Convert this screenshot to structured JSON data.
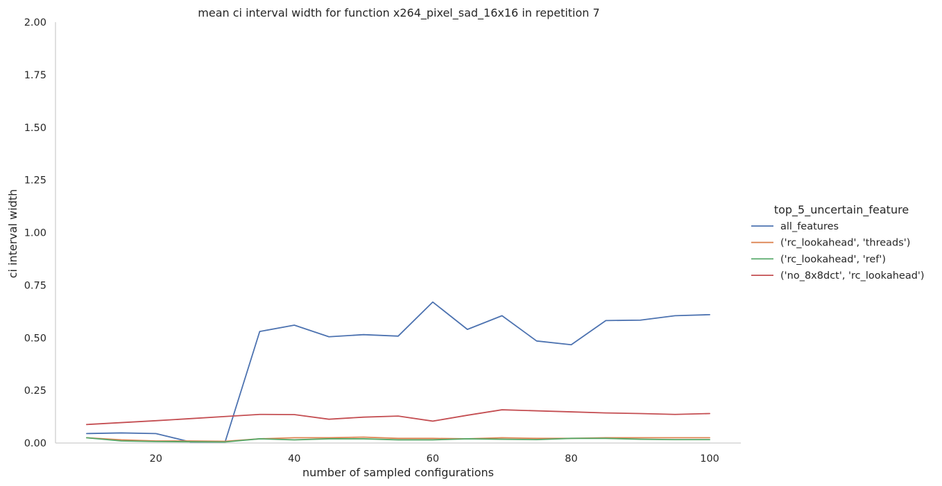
{
  "chart_data": {
    "type": "line",
    "title": "mean ci interval width for function x264_pixel_sad_16x16 in repetition 7",
    "xlabel": "number of sampled configurations",
    "ylabel": "ci interval width",
    "xlim": [
      5.5,
      104.5
    ],
    "ylim": [
      0,
      2.0
    ],
    "xticks": [
      20,
      40,
      60,
      80,
      100
    ],
    "xtick_labels": [
      "20",
      "40",
      "60",
      "80",
      "100"
    ],
    "yticks": [
      0,
      0.25,
      0.5,
      0.75,
      1.0,
      1.25,
      1.5,
      1.75,
      2.0
    ],
    "ytick_labels": [
      "0.00",
      "0.25",
      "0.50",
      "0.75",
      "1.00",
      "1.25",
      "1.50",
      "1.75",
      "2.00"
    ],
    "grid": false,
    "legend": {
      "title": "top_5_uncertain_feature",
      "placement": "right"
    },
    "x": [
      10,
      15,
      20,
      25,
      30,
      35,
      40,
      45,
      50,
      55,
      60,
      65,
      70,
      75,
      80,
      85,
      90,
      95,
      100
    ],
    "series": [
      {
        "name": "all_features",
        "color": "#4c72b0",
        "values": [
          0.045,
          0.048,
          0.045,
          0.005,
          0.005,
          0.53,
          0.56,
          0.505,
          0.515,
          0.508,
          0.67,
          0.54,
          0.605,
          0.485,
          0.467,
          0.582,
          0.584,
          0.605,
          0.61
        ]
      },
      {
        "name": "('rc_lookahead', 'threads')",
        "color": "#dd8452",
        "values": [
          0.025,
          0.015,
          0.01,
          0.01,
          0.008,
          0.02,
          0.025,
          0.025,
          0.028,
          0.022,
          0.022,
          0.02,
          0.025,
          0.022,
          0.022,
          0.025,
          0.025,
          0.025,
          0.025
        ]
      },
      {
        "name": "('rc_lookahead', 'ref')",
        "color": "#55a868",
        "values": [
          0.025,
          0.01,
          0.007,
          0.006,
          0.005,
          0.02,
          0.015,
          0.02,
          0.02,
          0.015,
          0.015,
          0.02,
          0.018,
          0.016,
          0.022,
          0.022,
          0.018,
          0.016,
          0.016
        ]
      },
      {
        "name": "('no_8x8dct', 'rc_lookahead')",
        "color": "#c44e52",
        "values": [
          0.088,
          0.097,
          0.106,
          0.116,
          0.126,
          0.136,
          0.135,
          0.113,
          0.123,
          0.128,
          0.104,
          0.132,
          0.158,
          0.153,
          0.148,
          0.143,
          0.14,
          0.136,
          0.14
        ]
      }
    ]
  }
}
